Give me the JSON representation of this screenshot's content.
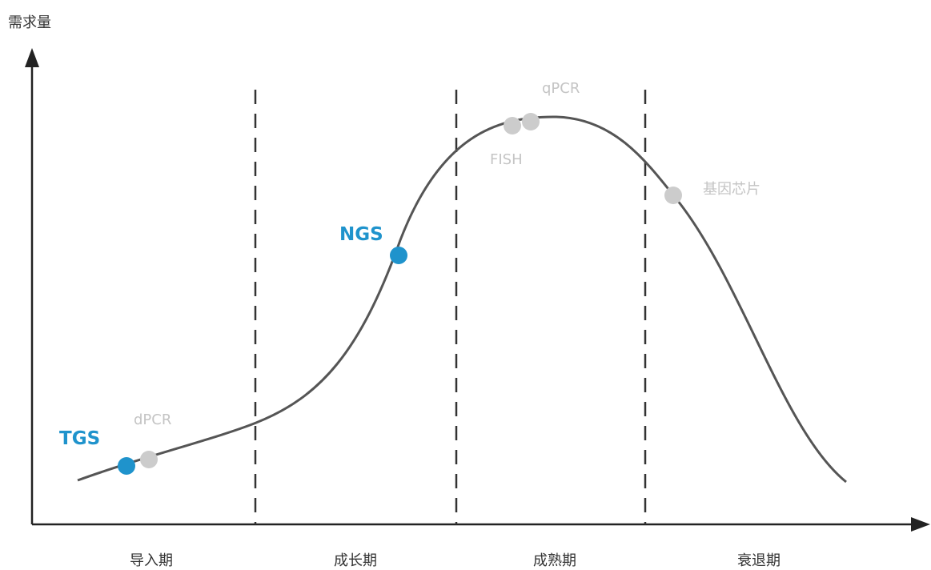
{
  "axis": {
    "ylabel": "需求量"
  },
  "stages": [
    "导入期",
    "成长期",
    "成熟期",
    "衰退期"
  ],
  "technologies": [
    {
      "id": "tgs",
      "label": "TGS",
      "highlight": true
    },
    {
      "id": "dpcr",
      "label": "dPCR",
      "highlight": false
    },
    {
      "id": "ngs",
      "label": "NGS",
      "highlight": true
    },
    {
      "id": "fish",
      "label": "FISH",
      "highlight": false
    },
    {
      "id": "qpcr",
      "label": "qPCR",
      "highlight": false
    },
    {
      "id": "chip",
      "label": "基因芯片",
      "highlight": false
    }
  ],
  "colors": {
    "highlight": "#1f93cc",
    "muted": "#cccccc",
    "curve": "#555555",
    "axis": "#222222"
  }
}
